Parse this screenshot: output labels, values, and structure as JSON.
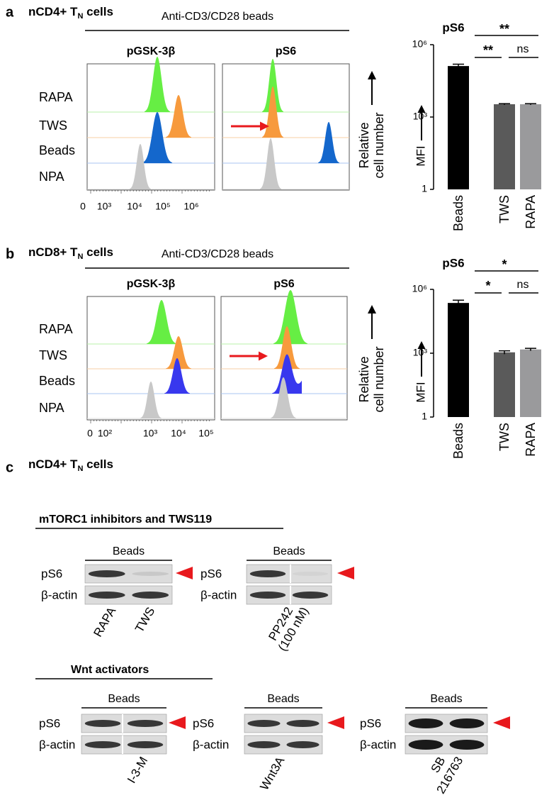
{
  "panel_a": {
    "letter": "a",
    "title": "nCD4+ T",
    "title_sub": "N",
    "title_end": " cells",
    "header": "Anti-CD3/CD28 beads",
    "hist_titles": [
      "pGSK-3β",
      "pS6"
    ],
    "rows": [
      "RAPA",
      "TWS",
      "Beads",
      "NPA"
    ],
    "x_ticks": [
      "0",
      "10³",
      "10⁴",
      "10⁵",
      "10⁶"
    ],
    "y_label": [
      "Relative",
      "cell number"
    ],
    "chart": {
      "type": "bar",
      "title": "pS6",
      "categories": [
        "Beads",
        "TWS",
        "RAPA"
      ],
      "values": [
        130000,
        3400,
        3400
      ],
      "errors": [
        25000,
        200,
        200
      ],
      "colors": [
        "#000000",
        "#5a5a5a",
        "#9a9a9c"
      ],
      "ylabel": "MFI",
      "log_scale": true,
      "ylim": [
        1,
        1000000
      ],
      "yticks": [
        1,
        {
          "value": 1000,
          "label": "10³"
        },
        {
          "value": 1000000,
          "label": "10⁶"
        }
      ],
      "significance": [
        "**",
        "**",
        "ns"
      ]
    }
  },
  "panel_b": {
    "letter": "b",
    "title": "nCD8+ T",
    "title_sub": "N",
    "title_end": " cells",
    "header": "Anti-CD3/CD28 beads",
    "hist_titles": [
      "pGSK-3β",
      "pS6"
    ],
    "rows": [
      "RAPA",
      "TWS",
      "Beads",
      "NPA"
    ],
    "x_ticks": [
      "0",
      "10²",
      "10³",
      "10⁴",
      "10⁵"
    ],
    "y_label": [
      "Relative",
      "cell number"
    ],
    "chart": {
      "type": "bar",
      "title": "pS6",
      "categories": [
        "Beads",
        "TWS",
        "RAPA"
      ],
      "values": [
        230000,
        1100,
        1500
      ],
      "errors": [
        80000,
        200,
        200
      ],
      "colors": [
        "#000000",
        "#5a5a5a",
        "#9a9a9c"
      ],
      "ylabel": "MFI",
      "log_scale": true,
      "ylim": [
        1,
        1000000
      ],
      "yticks": [
        1,
        {
          "value": 1000,
          "label": "10³"
        },
        {
          "value": 1000000,
          "label": "10⁶"
        }
      ],
      "significance": [
        "*",
        "*",
        "ns"
      ]
    }
  },
  "panel_c": {
    "letter": "c",
    "title": "nCD4+ T",
    "title_sub": "N",
    "title_end": " cells",
    "groups": [
      {
        "heading": "mTORC1 inhibitors and TWS119",
        "blots": [
          {
            "header": "Beads",
            "rows": [
              "pS6",
              "β-actin"
            ],
            "lane_labels": [
              "RAPA",
              "TWS"
            ]
          },
          {
            "header": "Beads",
            "rows": [
              "pS6",
              "β-actin"
            ],
            "lane_labels": [
              "PP242",
              "(100 nM)"
            ]
          }
        ]
      },
      {
        "heading": "Wnt activators",
        "blots": [
          {
            "header": "Beads",
            "rows": [
              "pS6",
              "β-actin"
            ],
            "lane_labels": [
              "I-3-M"
            ]
          },
          {
            "header": "Beads",
            "rows": [
              "pS6",
              "β-actin"
            ],
            "lane_labels": [
              "Wnt3A"
            ]
          },
          {
            "header": "Beads",
            "rows": [
              "pS6",
              "β-actin"
            ],
            "lane_labels": [
              "SB",
              "216763"
            ]
          }
        ]
      }
    ]
  }
}
